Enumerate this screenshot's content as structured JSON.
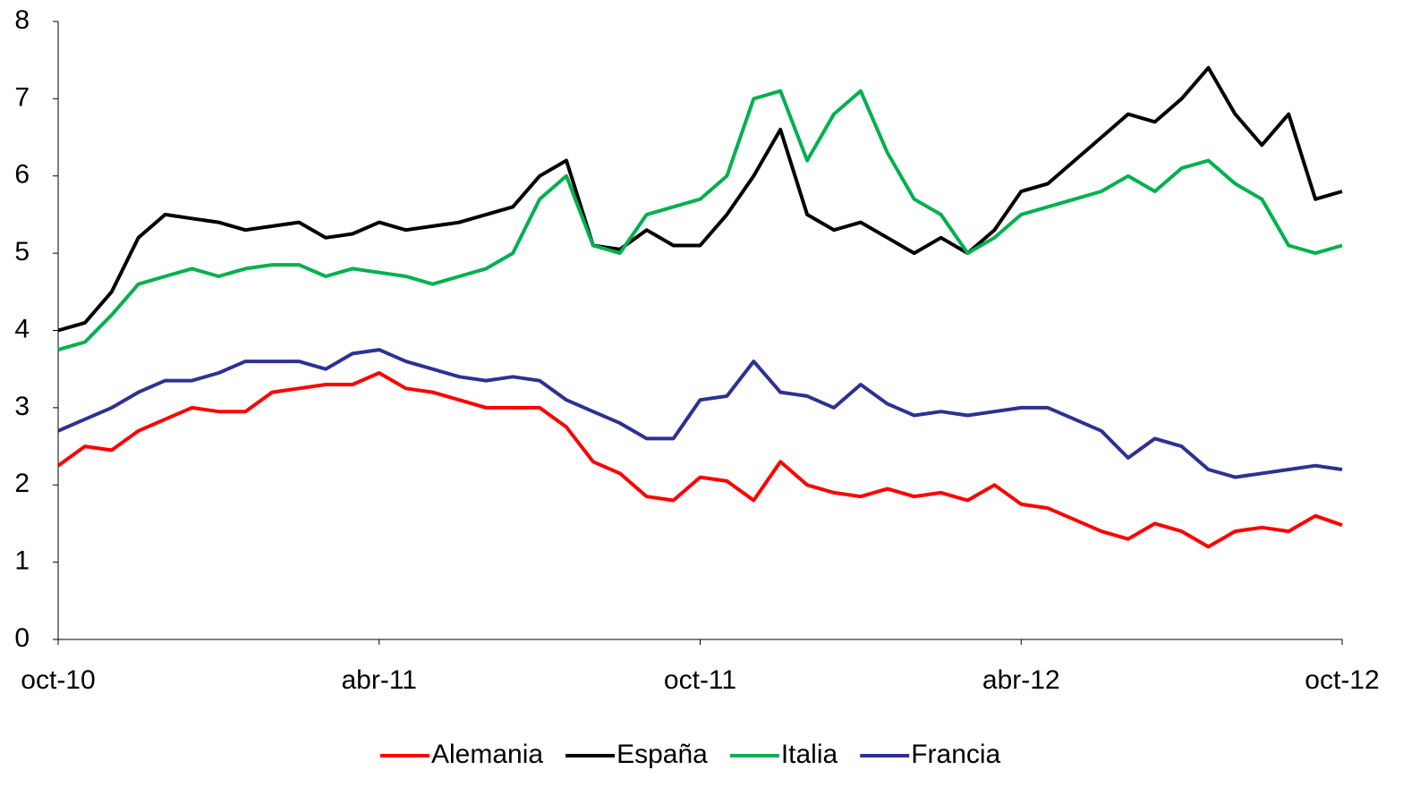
{
  "chart_data": {
    "type": "line",
    "categories": [
      "oct-10",
      null,
      null,
      null,
      null,
      null,
      null,
      null,
      null,
      null,
      null,
      null,
      "abr-11",
      null,
      null,
      null,
      null,
      null,
      null,
      null,
      null,
      null,
      null,
      null,
      "oct-11",
      null,
      null,
      null,
      null,
      null,
      null,
      null,
      null,
      null,
      null,
      null,
      "abr-12",
      null,
      null,
      null,
      null,
      null,
      null,
      null,
      null,
      null,
      null,
      null,
      "oct-12"
    ],
    "ylim": [
      0,
      8
    ],
    "yticks": [
      0,
      1,
      2,
      3,
      4,
      5,
      6,
      7,
      8
    ],
    "grid": false,
    "legend": "bottom",
    "series": [
      {
        "name": "Alemania",
        "color": "#ff0000",
        "values": [
          2.25,
          2.5,
          2.45,
          2.7,
          2.85,
          3.0,
          2.95,
          2.95,
          3.2,
          3.25,
          3.3,
          3.3,
          3.45,
          3.25,
          3.2,
          3.1,
          3.0,
          3.0,
          3.0,
          2.75,
          2.3,
          2.15,
          1.85,
          1.8,
          2.1,
          2.05,
          1.8,
          2.3,
          2.0,
          1.9,
          1.85,
          1.95,
          1.85,
          1.9,
          1.8,
          2.0,
          1.75,
          1.7,
          1.55,
          1.4,
          1.3,
          1.5,
          1.4,
          1.2,
          1.4,
          1.45,
          1.4,
          1.6,
          1.48
        ]
      },
      {
        "name": "España",
        "color": "#000000",
        "values": [
          4.0,
          4.1,
          4.5,
          5.2,
          5.5,
          5.45,
          5.4,
          5.3,
          5.35,
          5.4,
          5.2,
          5.25,
          5.4,
          5.3,
          5.35,
          5.4,
          5.5,
          5.6,
          6.0,
          6.2,
          5.1,
          5.05,
          5.3,
          5.1,
          5.1,
          5.5,
          6.0,
          6.6,
          5.5,
          5.3,
          5.4,
          5.2,
          5.0,
          5.2,
          5.0,
          5.3,
          5.8,
          5.9,
          6.2,
          6.5,
          6.8,
          6.7,
          7.0,
          7.4,
          6.8,
          6.4,
          6.8,
          5.7,
          5.8
        ]
      },
      {
        "name": "Italia",
        "color": "#00b050",
        "values": [
          3.75,
          3.85,
          4.2,
          4.6,
          4.7,
          4.8,
          4.7,
          4.8,
          4.85,
          4.85,
          4.7,
          4.8,
          4.75,
          4.7,
          4.6,
          4.7,
          4.8,
          5.0,
          5.7,
          6.0,
          5.1,
          5.0,
          5.5,
          5.6,
          5.7,
          6.0,
          7.0,
          7.1,
          6.2,
          6.8,
          7.1,
          6.3,
          5.7,
          5.5,
          5.0,
          5.2,
          5.5,
          5.6,
          5.7,
          5.8,
          6.0,
          5.8,
          6.1,
          6.2,
          5.9,
          5.7,
          5.1,
          5.0,
          5.1
        ]
      },
      {
        "name": "Francia",
        "color": "#2e3192",
        "values": [
          2.7,
          2.85,
          3.0,
          3.2,
          3.35,
          3.35,
          3.45,
          3.6,
          3.6,
          3.6,
          3.5,
          3.7,
          3.75,
          3.6,
          3.5,
          3.4,
          3.35,
          3.4,
          3.35,
          3.1,
          2.95,
          2.8,
          2.6,
          2.6,
          3.1,
          3.15,
          3.6,
          3.2,
          3.15,
          3.0,
          3.3,
          3.05,
          2.9,
          2.95,
          2.9,
          2.95,
          3.0,
          3.0,
          2.85,
          2.7,
          2.35,
          2.6,
          2.5,
          2.2,
          2.1,
          2.15,
          2.2,
          2.25,
          2.2
        ]
      }
    ]
  }
}
